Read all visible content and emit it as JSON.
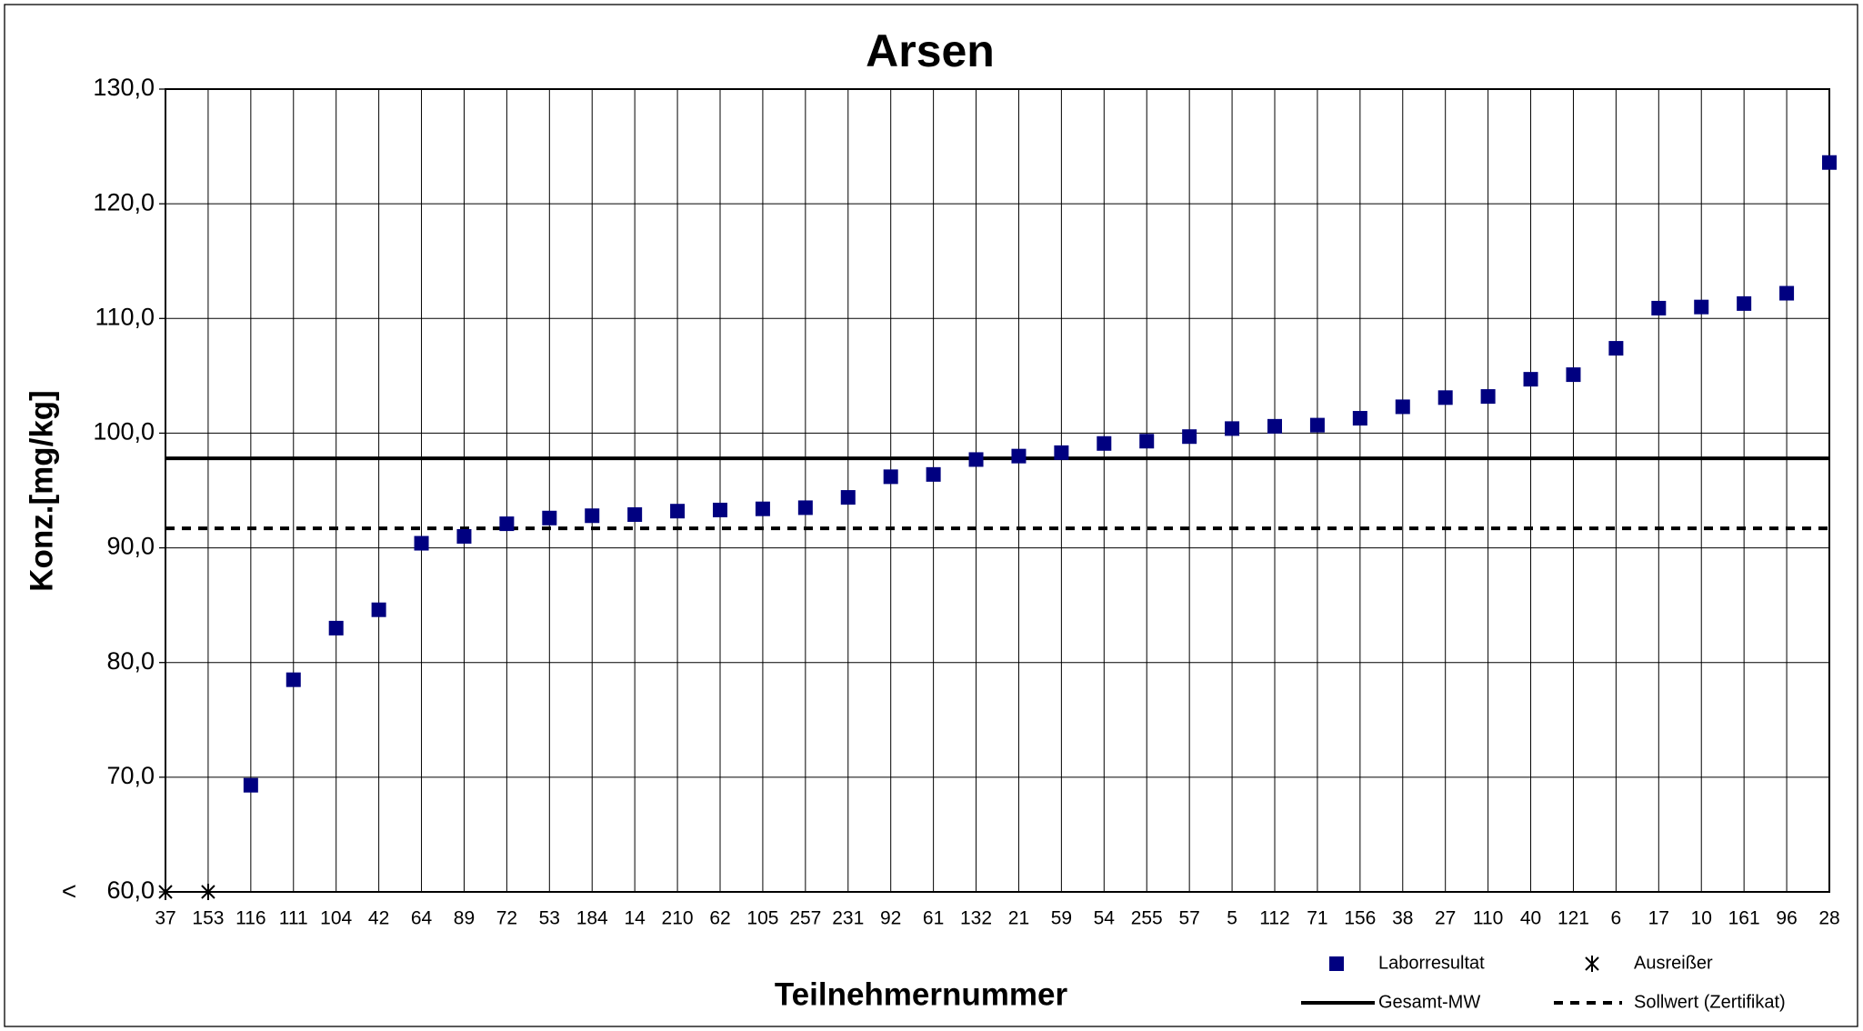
{
  "chart_data": {
    "type": "scatter",
    "title": "Arsen",
    "x_label": "Teilnehmernummer",
    "y_label": "Konz.[mg/kg]",
    "annotations": [
      "<"
    ],
    "categories": [
      "37",
      "153",
      "116",
      "111",
      "104",
      "42",
      "64",
      "89",
      "72",
      "53",
      "184",
      "14",
      "210",
      "62",
      "105",
      "257",
      "231",
      "92",
      "61",
      "132",
      "21",
      "59",
      "54",
      "255",
      "57",
      "5",
      "112",
      "71",
      "156",
      "38",
      "27",
      "110",
      "40",
      "121",
      "6",
      "17",
      "10",
      "161",
      "96",
      "28"
    ],
    "series": [
      {
        "name": "Laborresultat",
        "color": "#000080",
        "marker": "square",
        "values": [
          null,
          null,
          69.3,
          78.5,
          83.0,
          84.6,
          90.4,
          91.0,
          92.1,
          92.6,
          92.8,
          92.9,
          93.2,
          93.3,
          93.4,
          93.5,
          94.4,
          96.2,
          96.4,
          97.7,
          98.0,
          98.3,
          99.1,
          99.3,
          99.7,
          100.4,
          100.6,
          100.7,
          101.3,
          102.3,
          103.1,
          103.2,
          104.7,
          105.1,
          107.4,
          110.9,
          111.0,
          111.3,
          112.2,
          123.6
        ]
      },
      {
        "name": "Ausreißer",
        "color": "#000000",
        "marker": "asterisk",
        "values": [
          60,
          60,
          null,
          null,
          null,
          null,
          null,
          null,
          null,
          null,
          null,
          null,
          null,
          null,
          null,
          null,
          null,
          null,
          null,
          null,
          null,
          null,
          null,
          null,
          null,
          null,
          null,
          null,
          null,
          null,
          null,
          null,
          null,
          null,
          null,
          null,
          null,
          null,
          null,
          null
        ]
      }
    ],
    "reference_lines": [
      {
        "name": "Gesamt-MW",
        "value": 97.8,
        "color": "#000000",
        "style": "solid"
      },
      {
        "name": "Sollwert (Zertifikat)",
        "value": 91.7,
        "color": "#000000",
        "style": "dashed"
      }
    ],
    "ylim": [
      60,
      130
    ],
    "yticks": [
      {
        "value": 60,
        "label": "60,0"
      },
      {
        "value": 70,
        "label": "70,0"
      },
      {
        "value": 80,
        "label": "80,0"
      },
      {
        "value": 90,
        "label": "90,0"
      },
      {
        "value": 100,
        "label": "100,0"
      },
      {
        "value": 110,
        "label": "110,0"
      },
      {
        "value": 120,
        "label": "120,0"
      },
      {
        "value": 130,
        "label": "130,0"
      }
    ],
    "grid": true
  }
}
